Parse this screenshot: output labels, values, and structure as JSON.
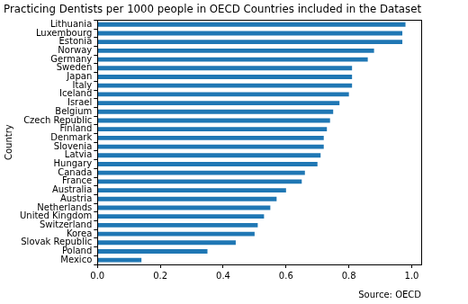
{
  "chart_data": {
    "type": "bar",
    "orientation": "horizontal",
    "title": "Practicing Dentists per 1000 people in OECD Countries included in the Dataset",
    "y_label": "Country",
    "annotation": "Source: OECD",
    "categories": [
      "Lithuania",
      "Luxembourg",
      "Estonia",
      "Norway",
      "Germany",
      "Sweden",
      "Japan",
      "Italy",
      "Iceland",
      "Israel",
      "Belgium",
      "Czech Republic",
      "Finland",
      "Denmark",
      "Slovenia",
      "Latvia",
      "Hungary",
      "Canada",
      "France",
      "Australia",
      "Austria",
      "Netherlands",
      "United Kingdom",
      "Switzerland",
      "Korea",
      "Slovak Republic",
      "Poland",
      "Mexico"
    ],
    "values": [
      0.98,
      0.97,
      0.97,
      0.88,
      0.86,
      0.81,
      0.81,
      0.81,
      0.8,
      0.77,
      0.75,
      0.74,
      0.73,
      0.72,
      0.72,
      0.71,
      0.7,
      0.66,
      0.65,
      0.6,
      0.57,
      0.55,
      0.53,
      0.51,
      0.5,
      0.44,
      0.35,
      0.14
    ],
    "color": "#1f77b4",
    "xlim": [
      0,
      1.03
    ],
    "xticks": [
      {
        "value": 0,
        "label": "0.0"
      },
      {
        "value": 0.2,
        "label": "0.2"
      },
      {
        "value": 0.4,
        "label": "0.4"
      },
      {
        "value": 0.6,
        "label": "0.6"
      },
      {
        "value": 0.8,
        "label": "0.8"
      },
      {
        "value": 1,
        "label": "1.0"
      }
    ],
    "grid": false
  }
}
